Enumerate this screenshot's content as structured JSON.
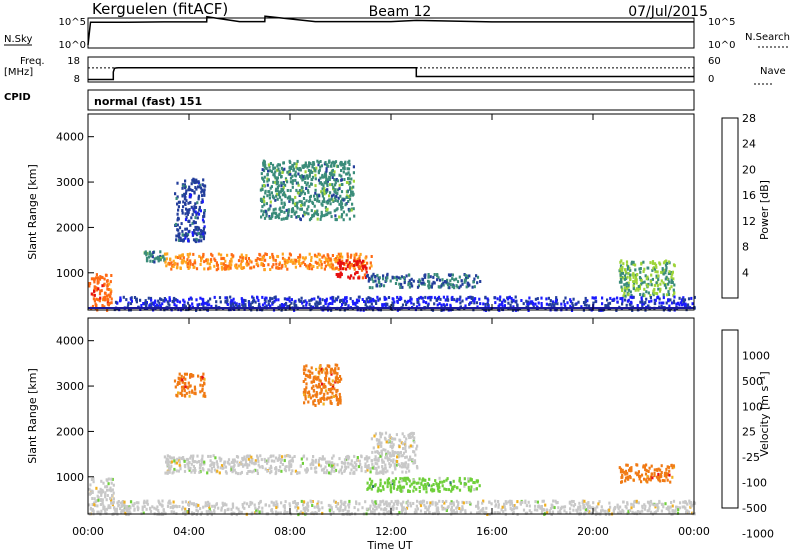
{
  "header": {
    "station": "Kerguelen (fitACF)",
    "beam": "Beam 12",
    "date": "07/Jul/2015"
  },
  "noise_panel": {
    "left_label": "N.Sky",
    "right_label": "N.Search",
    "ticks": [
      "10^5",
      "10^0"
    ]
  },
  "freq_panel": {
    "left_label_line1": "Freq.",
    "left_label_line2": "[MHz]",
    "left_ticks": [
      "18",
      "8"
    ],
    "right_label": "Nave",
    "right_ticks": [
      "60",
      "0"
    ]
  },
  "cpid_panel": {
    "label": "CPID",
    "value": "normal (fast) 151"
  },
  "xaxis": {
    "label": "Time UT",
    "ticks": [
      "00:00",
      "04:00",
      "08:00",
      "12:00",
      "16:00",
      "20:00",
      "00:00"
    ]
  },
  "power_panel": {
    "ylabel": "Slant Range [km]",
    "yticks": [
      "1000",
      "2000",
      "3000",
      "4000"
    ],
    "cbar_label": "Power [dB]",
    "cbar_ticks": [
      "4",
      "8",
      "12",
      "16",
      "20",
      "24",
      "28"
    ],
    "cbar_colors": [
      "#1a1aff",
      "#233e9b",
      "#3a8c7a",
      "#9ed43a",
      "#ffa51e",
      "#ff6a14",
      "#e61010"
    ]
  },
  "velocity_panel": {
    "ylabel": "Slant Range [km]",
    "yticks": [
      "1000",
      "2000",
      "3000",
      "4000"
    ],
    "cbar_label": "Velocity [m s⁻¹]",
    "cbar_ticks": [
      "1000",
      "500",
      "100",
      "25",
      "-25",
      "-100",
      "-500",
      "-1000"
    ],
    "cbar_colors": [
      "#2a3fb0",
      "#2f7d6a",
      "#6fcf3a",
      "#c8c8c8",
      "#f0b020",
      "#f07a14",
      "#e61010"
    ]
  },
  "chart_data": [
    {
      "type": "line",
      "title": "N.Sky / N.Search",
      "x_unit": "hours UT",
      "x": [
        0,
        0.1,
        1.5,
        3,
        4.7,
        4.71,
        6,
        7,
        7.01,
        9,
        11,
        12,
        13,
        16,
        20,
        24
      ],
      "y_log10": [
        0.5,
        4.3,
        4.3,
        4.35,
        4.35,
        5.2,
        4.4,
        4.4,
        5.3,
        4.4,
        4.4,
        4.4,
        4.6,
        4.35,
        4.35,
        4.35
      ],
      "ylim": [
        "10^0",
        "10^5"
      ]
    },
    {
      "type": "line",
      "title": "Freq. / Nave",
      "x_unit": "hours UT",
      "series": [
        {
          "name": "Freq. [MHz]",
          "x": [
            0,
            1,
            1,
            1.05,
            1.1,
            1.2,
            13,
            13,
            24
          ],
          "y": [
            9,
            9,
            12,
            13.5,
            13.6,
            13.7,
            13.7,
            10.2,
            10.2
          ]
        },
        {
          "name": "Nave",
          "x": [
            0,
            24
          ],
          "y": [
            34,
            34
          ]
        }
      ],
      "ylim_freq": [
        8,
        18
      ],
      "ylim_nave": [
        0,
        60
      ]
    },
    {
      "type": "heatmap",
      "title": "Power [dB]",
      "x_unit": "hours UT",
      "y_unit": "km",
      "xlim": [
        0,
        24
      ],
      "ylim": [
        180,
        4500
      ],
      "echo_regions": [
        {
          "t0": 0.0,
          "t1": 0.9,
          "r0": 200,
          "r1": 1000,
          "value_db": 24
        },
        {
          "t0": 2.2,
          "t1": 3.0,
          "r0": 1250,
          "r1": 1500,
          "value_db": 12
        },
        {
          "t0": 3.0,
          "t1": 11.2,
          "r0": 1100,
          "r1": 1450,
          "value_db": 22
        },
        {
          "t0": 9.8,
          "t1": 11.0,
          "r0": 900,
          "r1": 1300,
          "value_db": 28
        },
        {
          "t0": 11.0,
          "t1": 15.5,
          "r0": 700,
          "r1": 1000,
          "value_db": 10
        },
        {
          "t0": 3.4,
          "t1": 4.6,
          "r0": 1700,
          "r1": 3100,
          "value_db": 8
        },
        {
          "t0": 6.8,
          "t1": 10.5,
          "r0": 2200,
          "r1": 3500,
          "value_db": 12
        },
        {
          "t0": 21.0,
          "t1": 23.2,
          "r0": 500,
          "r1": 1300,
          "value_db": 14
        },
        {
          "t0": 1.0,
          "t1": 24.0,
          "r0": 200,
          "r1": 500,
          "value_db": 6
        }
      ]
    },
    {
      "type": "heatmap",
      "title": "Velocity [m s⁻¹]",
      "x_unit": "hours UT",
      "y_unit": "km",
      "xlim": [
        0,
        24
      ],
      "ylim": [
        180,
        4500
      ],
      "echo_regions": [
        {
          "t0": 0.0,
          "t1": 1.0,
          "r0": 200,
          "r1": 1000,
          "value_ms": 0
        },
        {
          "t0": 3.0,
          "t1": 11.2,
          "r0": 1100,
          "r1": 1500,
          "value_ms": 0
        },
        {
          "t0": 11.2,
          "t1": 13.0,
          "r0": 1100,
          "r1": 2000,
          "value_ms": 0
        },
        {
          "t0": 11.0,
          "t1": 15.5,
          "r0": 700,
          "r1": 1000,
          "value_ms": 100
        },
        {
          "t0": 3.4,
          "t1": 4.6,
          "r0": 2800,
          "r1": 3300,
          "value_ms": -300
        },
        {
          "t0": 8.5,
          "t1": 10.0,
          "r0": 2600,
          "r1": 3500,
          "value_ms": -300
        },
        {
          "t0": 21.0,
          "t1": 23.2,
          "r0": 900,
          "r1": 1300,
          "value_ms": -100
        },
        {
          "t0": 1.0,
          "t1": 24.0,
          "r0": 200,
          "r1": 500,
          "value_ms": 0
        }
      ]
    }
  ]
}
